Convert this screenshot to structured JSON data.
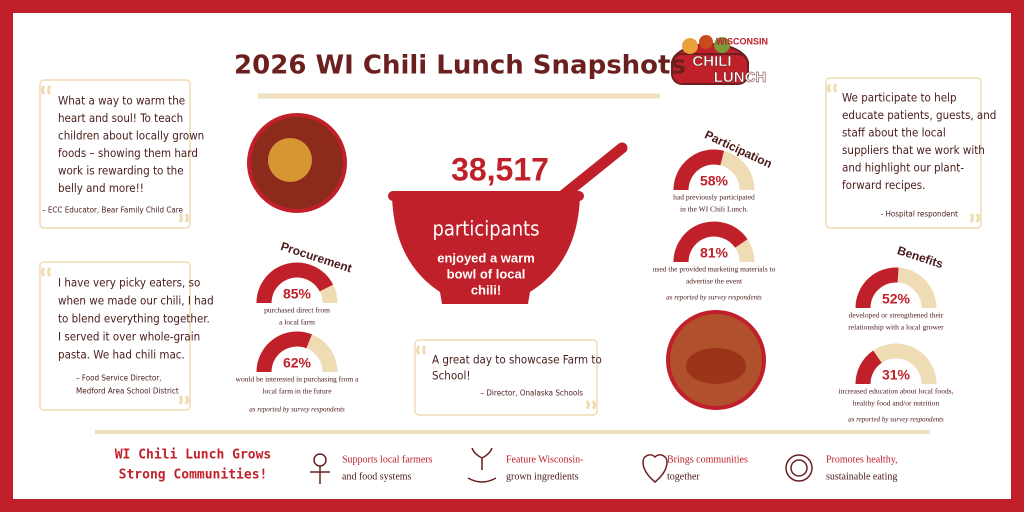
{
  "header": {
    "title": "2026 WI Chili Lunch Snapshots",
    "logo": [
      "WISCONSIN",
      "CHILI",
      "LUNCH"
    ]
  },
  "quotes": [
    {
      "lines": [
        "What a way to warm the",
        "heart and soul! To teach",
        "children about locally grown",
        "foods – showing them hard",
        "work is rewarding to the",
        "belly and more!!"
      ],
      "source": [
        "– ECC Educator, Bear Family Child Care"
      ]
    },
    {
      "lines": [
        "I have very picky eaters, so",
        "when we made our chili, I had",
        "to blend everything together.",
        "I served it over whole-grain",
        "pasta. We had chili mac."
      ],
      "source": [
        "– Food Service Director,",
        "Medford Area School District"
      ]
    },
    {
      "lines": [
        "A great day to showcase Farm to",
        "School!"
      ],
      "source": [
        "– Director, Onalaska Schools"
      ]
    },
    {
      "lines": [
        "We participate to help",
        "educate patients, guests, and",
        "staff about the local",
        "suppliers that we work with",
        "and highlight our plant-",
        "forward recipes."
      ],
      "source": [
        "- Hospital respondent"
      ]
    }
  ],
  "participants": {
    "count": "38,517",
    "label": "participants",
    "lines": [
      "enjoyed a warm",
      "bowl of local",
      "chili!"
    ]
  },
  "sections": [
    {
      "title": "Procurement",
      "stats": [
        {
          "value": 85,
          "label": "85%",
          "lines": [
            "purchased direct from",
            "a local farm"
          ]
        },
        {
          "value": 62,
          "label": "62%",
          "lines": [
            "would be interested in purchasing from a",
            "local farm in the future"
          ]
        }
      ],
      "note": "as reported by survey respondents"
    },
    {
      "title": "Participation",
      "stats": [
        {
          "value": 58,
          "label": "58%",
          "lines": [
            "had previously participated",
            "in the WI Chili Lunch."
          ]
        },
        {
          "value": 81,
          "label": "81%",
          "lines": [
            "used the provided marketing materials to",
            "advertise the event"
          ]
        }
      ],
      "note": "as reported by survey respondents"
    },
    {
      "title": "Benefits",
      "stats": [
        {
          "value": 52,
          "label": "52%",
          "lines": [
            "developed or strengthened their",
            "relationship with a local grower"
          ]
        },
        {
          "value": 31,
          "label": "31%",
          "lines": [
            "increased education about local foods,",
            "healthy food and/or nutrition"
          ]
        }
      ],
      "note": "as reported by survey respondents"
    }
  ],
  "footer": {
    "title": [
      "WI Chili Lunch Grows",
      "Strong Communities!"
    ],
    "items": [
      {
        "lines": [
          "Supports local farmers",
          "and food systems"
        ]
      },
      {
        "lines": [
          "Feature Wisconsin-",
          "grown ingredients"
        ]
      },
      {
        "lines": [
          "Brings communities",
          "together"
        ]
      },
      {
        "lines": [
          "Promotes healthy,",
          "sustainable eating"
        ]
      }
    ]
  }
}
